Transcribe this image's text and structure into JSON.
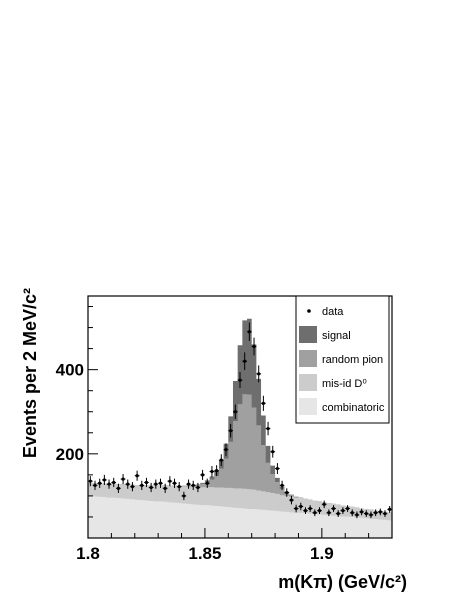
{
  "chart_data": {
    "type": "area",
    "title": "",
    "xlabel": "m(Kπ) (GeV/c²)",
    "ylabel": "Events per 2 MeV/c²",
    "xlim": [
      1.8,
      1.93
    ],
    "ylim": [
      0,
      575
    ],
    "x_ticks": [
      {
        "v": 1.8,
        "label": "1.8"
      },
      {
        "v": 1.85,
        "label": "1.85"
      },
      {
        "v": 1.9,
        "label": "1.9"
      }
    ],
    "y_ticks": [
      {
        "v": 200,
        "label": "200"
      },
      {
        "v": 400,
        "label": "400"
      }
    ],
    "bin_width": 0.002,
    "x_bin_starts": [
      1.8,
      1.802,
      1.804,
      1.806,
      1.808,
      1.81,
      1.812,
      1.814,
      1.816,
      1.818,
      1.82,
      1.822,
      1.824,
      1.826,
      1.828,
      1.83,
      1.832,
      1.834,
      1.836,
      1.838,
      1.84,
      1.842,
      1.844,
      1.846,
      1.848,
      1.85,
      1.852,
      1.854,
      1.856,
      1.858,
      1.86,
      1.862,
      1.864,
      1.866,
      1.868,
      1.87,
      1.872,
      1.874,
      1.876,
      1.878,
      1.88,
      1.882,
      1.884,
      1.886,
      1.888,
      1.89,
      1.892,
      1.894,
      1.896,
      1.898,
      1.9,
      1.902,
      1.904,
      1.906,
      1.908,
      1.91,
      1.912,
      1.914,
      1.916,
      1.918,
      1.92,
      1.922,
      1.924,
      1.926,
      1.928
    ],
    "stacked": true,
    "series": [
      {
        "name": "combinatoric",
        "color": "#e6e6e6",
        "values": [
          100,
          99,
          98,
          97,
          96,
          96,
          95,
          94,
          93,
          92,
          91,
          90,
          89,
          88,
          87,
          87,
          86,
          85,
          84,
          83,
          82,
          81,
          80,
          79,
          78,
          78,
          77,
          76,
          75,
          74,
          73,
          72,
          71,
          70,
          69,
          69,
          68,
          67,
          66,
          65,
          64,
          63,
          62,
          61,
          60,
          60,
          59,
          58,
          57,
          56,
          55,
          54,
          53,
          52,
          51,
          51,
          50,
          49,
          48,
          47,
          46,
          45,
          44,
          43,
          42
        ]
      },
      {
        "name": "mis-id D⁰",
        "color": "#cccccc",
        "values": [
          30,
          31,
          31,
          32,
          32,
          33,
          33,
          34,
          34,
          35,
          35,
          36,
          36,
          37,
          37,
          38,
          39,
          39,
          40,
          40,
          41,
          41,
          42,
          42,
          43,
          43,
          44,
          44,
          45,
          45,
          46,
          46,
          47,
          47,
          47,
          46,
          45,
          44,
          43,
          42,
          41,
          39,
          38,
          37,
          36,
          35,
          34,
          33,
          32,
          31,
          30,
          29,
          28,
          27,
          26,
          25,
          24,
          23,
          22,
          22,
          21,
          20,
          20,
          19,
          18
        ]
      },
      {
        "name": "random pion",
        "color": "#a0a0a0",
        "values": [
          0,
          0,
          0,
          0,
          0,
          0,
          0,
          0,
          0,
          0,
          0,
          0,
          0,
          0,
          0,
          0,
          0,
          0,
          0,
          0,
          1,
          2,
          3,
          5,
          8,
          12,
          18,
          28,
          45,
          70,
          110,
          160,
          200,
          225,
          225,
          195,
          155,
          110,
          70,
          45,
          28,
          15,
          8,
          4,
          2,
          1,
          0,
          0,
          0,
          0,
          0,
          0,
          0,
          0,
          0,
          0,
          0,
          0,
          0,
          0,
          0,
          0,
          0,
          0,
          0
        ]
      },
      {
        "name": "signal",
        "color": "#6e6e6e",
        "values": [
          0,
          0,
          0,
          0,
          0,
          0,
          0,
          0,
          0,
          0,
          0,
          0,
          0,
          0,
          0,
          0,
          0,
          0,
          0,
          0,
          0,
          0,
          0,
          1,
          2,
          4,
          7,
          12,
          20,
          35,
          60,
          95,
          140,
          175,
          180,
          150,
          110,
          70,
          40,
          20,
          10,
          5,
          2,
          1,
          0,
          0,
          0,
          0,
          0,
          0,
          0,
          0,
          0,
          0,
          0,
          0,
          0,
          0,
          0,
          0,
          0,
          0,
          0,
          0,
          0
        ]
      }
    ],
    "data_points": {
      "name": "data",
      "x": [
        1.801,
        1.803,
        1.805,
        1.807,
        1.809,
        1.811,
        1.813,
        1.815,
        1.817,
        1.819,
        1.821,
        1.823,
        1.825,
        1.827,
        1.829,
        1.831,
        1.833,
        1.835,
        1.837,
        1.839,
        1.841,
        1.843,
        1.845,
        1.847,
        1.849,
        1.851,
        1.853,
        1.855,
        1.857,
        1.859,
        1.861,
        1.863,
        1.865,
        1.867,
        1.869,
        1.871,
        1.873,
        1.875,
        1.877,
        1.879,
        1.881,
        1.883,
        1.885,
        1.887,
        1.889,
        1.891,
        1.893,
        1.895,
        1.897,
        1.899,
        1.901,
        1.903,
        1.905,
        1.907,
        1.909,
        1.911,
        1.913,
        1.915,
        1.917,
        1.919,
        1.921,
        1.923,
        1.925,
        1.927,
        1.929
      ],
      "y": [
        135,
        125,
        130,
        138,
        128,
        132,
        118,
        140,
        128,
        122,
        148,
        125,
        132,
        120,
        128,
        130,
        118,
        135,
        130,
        122,
        100,
        128,
        125,
        120,
        150,
        130,
        158,
        160,
        185,
        210,
        255,
        300,
        375,
        420,
        490,
        455,
        390,
        320,
        260,
        205,
        165,
        125,
        108,
        90,
        70,
        75,
        65,
        70,
        60,
        65,
        80,
        60,
        70,
        58,
        65,
        70,
        60,
        55,
        62,
        58,
        55,
        60,
        62,
        58,
        68
      ],
      "errors": [
        12,
        11,
        11,
        12,
        11,
        11,
        11,
        12,
        11,
        11,
        12,
        11,
        11,
        11,
        11,
        11,
        11,
        12,
        11,
        11,
        10,
        11,
        11,
        11,
        12,
        11,
        13,
        13,
        14,
        15,
        16,
        17,
        19,
        21,
        22,
        21,
        20,
        18,
        16,
        14,
        13,
        11,
        10,
        10,
        9,
        9,
        8,
        8,
        8,
        8,
        9,
        8,
        8,
        8,
        8,
        8,
        8,
        8,
        8,
        8,
        8,
        8,
        8,
        8,
        8
      ]
    },
    "legend": {
      "placement": "top-right",
      "entries": [
        {
          "label": "data",
          "kind": "marker",
          "color": "#000000"
        },
        {
          "label": "signal",
          "kind": "box",
          "color": "#6e6e6e"
        },
        {
          "label": "random pion",
          "kind": "box",
          "color": "#a0a0a0"
        },
        {
          "label": "mis-id D⁰",
          "kind": "box",
          "color": "#cccccc"
        },
        {
          "label": "combinatoric",
          "kind": "box",
          "color": "#e6e6e6"
        }
      ]
    },
    "grid": false
  }
}
